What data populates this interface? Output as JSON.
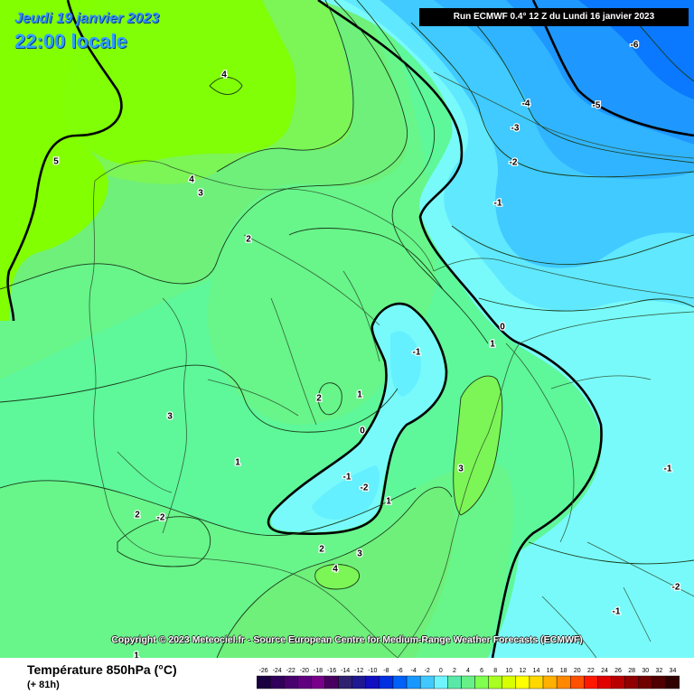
{
  "header": {
    "date_text": "Jeudi 19 janvier 2023",
    "time_text": "22:00 locale",
    "run_text": "Run ECMWF 0.4° 12 Z du Lundi 16 janvier 2023"
  },
  "copyright": "Copyright © 2023 Meteociel.fr - Source European Centre for Medium-Range Weather Forecasts (ECMWF)",
  "legend": {
    "title": "Température 850hPa (°C)",
    "subtitle": "(+ 81h)",
    "ticks": [
      "-26",
      "-24",
      "-22",
      "-20",
      "-18",
      "-16",
      "-14",
      "-12",
      "-10",
      "-8",
      "-6",
      "-4",
      "-2",
      "0",
      "2",
      "4",
      "6",
      "8",
      "10",
      "12",
      "14",
      "16",
      "18",
      "20",
      "22",
      "24",
      "26",
      "28",
      "30",
      "32",
      "34"
    ],
    "colors": [
      "#1a0040",
      "#30005a",
      "#48006e",
      "#600080",
      "#78008a",
      "#480060",
      "#302070",
      "#201890",
      "#1010c0",
      "#0030e0",
      "#0060f8",
      "#1898ff",
      "#40c8ff",
      "#70f4ff",
      "#58e8a8",
      "#68f088",
      "#80ff50",
      "#a8ff20",
      "#d8ff00",
      "#ffff00",
      "#ffd800",
      "#ffb000",
      "#ff8800",
      "#ff5000",
      "#ff1800",
      "#e00000",
      "#b80000",
      "#900000",
      "#700000",
      "#500000",
      "#300000"
    ]
  },
  "contour_labels": [
    {
      "text": "4"
    },
    {
      "text": "5"
    },
    {
      "text": "4"
    },
    {
      "text": "3"
    },
    {
      "text": "2"
    },
    {
      "text": "3"
    },
    {
      "text": "2"
    },
    {
      "text": "1"
    },
    {
      "text": "0"
    },
    {
      "text": "-1"
    },
    {
      "text": "-1"
    },
    {
      "text": "-2"
    },
    {
      "text": "1"
    },
    {
      "text": "3"
    },
    {
      "text": "1"
    },
    {
      "text": "2"
    },
    {
      "text": "-2"
    },
    {
      "text": "2"
    },
    {
      "text": "3"
    },
    {
      "text": "4"
    },
    {
      "text": "1"
    },
    {
      "text": "0"
    },
    {
      "text": "1"
    },
    {
      "text": "-1"
    },
    {
      "text": "-2"
    },
    {
      "text": "-3"
    },
    {
      "text": "-4"
    },
    {
      "text": "-5"
    },
    {
      "text": "-6"
    },
    {
      "text": "-1"
    },
    {
      "text": "-2"
    },
    {
      "text": "-1"
    }
  ]
}
